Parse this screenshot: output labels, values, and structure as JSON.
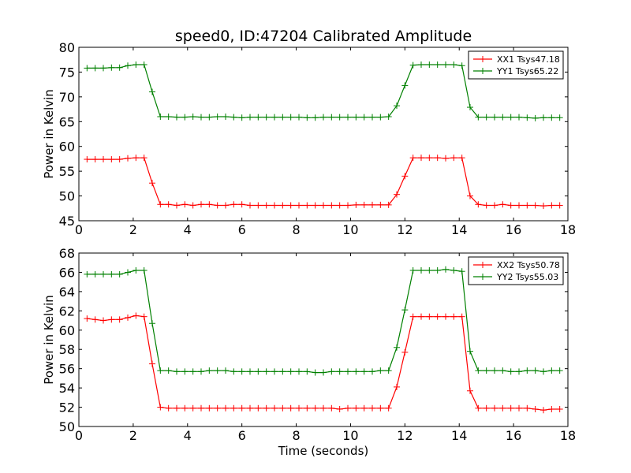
{
  "figure": {
    "title": "speed0, ID:47204 Calibrated Amplitude",
    "xlabel": "Time (seconds)"
  },
  "chart_data": [
    {
      "type": "line",
      "title": "speed0, ID:47204 Calibrated Amplitude",
      "xlabel": "",
      "ylabel": "Power in Kelvin",
      "xlim": [
        0,
        18
      ],
      "ylim": [
        45,
        80
      ],
      "xticks": [
        0,
        2,
        4,
        6,
        8,
        10,
        12,
        14,
        16,
        18
      ],
      "yticks": [
        45,
        50,
        55,
        60,
        65,
        70,
        75,
        80
      ],
      "legend": "top-right",
      "grid": false,
      "series": [
        {
          "name": "XX1 Tsys47.18",
          "color": "#ff0000",
          "x": [
            0.3,
            0.6,
            0.9,
            1.2,
            1.5,
            1.8,
            2.1,
            2.4,
            2.7,
            3.0,
            3.3,
            3.6,
            3.9,
            4.2,
            4.5,
            4.8,
            5.1,
            5.4,
            5.7,
            6.0,
            6.3,
            6.6,
            6.9,
            7.2,
            7.5,
            7.8,
            8.1,
            8.4,
            8.7,
            9.0,
            9.3,
            9.6,
            9.9,
            10.2,
            10.5,
            10.8,
            11.1,
            11.4,
            11.7,
            12.0,
            12.3,
            12.6,
            12.9,
            13.2,
            13.5,
            13.8,
            14.1,
            14.4,
            14.7,
            15.0,
            15.3,
            15.6,
            15.9,
            16.2,
            16.5,
            16.8,
            17.1,
            17.4,
            17.7
          ],
          "y": [
            57.4,
            57.4,
            57.4,
            57.4,
            57.4,
            57.6,
            57.7,
            57.7,
            52.6,
            48.3,
            48.3,
            48.1,
            48.3,
            48.1,
            48.3,
            48.3,
            48.1,
            48.1,
            48.3,
            48.3,
            48.1,
            48.1,
            48.1,
            48.1,
            48.1,
            48.1,
            48.1,
            48.1,
            48.1,
            48.1,
            48.1,
            48.1,
            48.1,
            48.2,
            48.2,
            48.2,
            48.2,
            48.2,
            50.3,
            54.0,
            57.7,
            57.7,
            57.7,
            57.7,
            57.6,
            57.7,
            57.7,
            50.0,
            48.3,
            48.1,
            48.1,
            48.3,
            48.1,
            48.1,
            48.1,
            48.1,
            48.0,
            48.1,
            48.1
          ]
        },
        {
          "name": "YY1 Tsys65.22",
          "color": "#008000",
          "x": [
            0.3,
            0.6,
            0.9,
            1.2,
            1.5,
            1.8,
            2.1,
            2.4,
            2.7,
            3.0,
            3.3,
            3.6,
            3.9,
            4.2,
            4.5,
            4.8,
            5.1,
            5.4,
            5.7,
            6.0,
            6.3,
            6.6,
            6.9,
            7.2,
            7.5,
            7.8,
            8.1,
            8.4,
            8.7,
            9.0,
            9.3,
            9.6,
            9.9,
            10.2,
            10.5,
            10.8,
            11.1,
            11.4,
            11.7,
            12.0,
            12.3,
            12.6,
            12.9,
            13.2,
            13.5,
            13.8,
            14.1,
            14.4,
            14.7,
            15.0,
            15.3,
            15.6,
            15.9,
            16.2,
            16.5,
            16.8,
            17.1,
            17.4,
            17.7
          ],
          "y": [
            75.8,
            75.8,
            75.8,
            75.9,
            75.9,
            76.3,
            76.5,
            76.5,
            71.0,
            66.0,
            66.0,
            65.9,
            65.9,
            66.0,
            65.9,
            65.9,
            66.0,
            66.0,
            65.9,
            65.8,
            65.9,
            65.9,
            65.9,
            65.9,
            65.9,
            65.9,
            65.9,
            65.8,
            65.8,
            65.9,
            65.9,
            65.9,
            65.9,
            65.9,
            65.9,
            65.9,
            65.9,
            66.0,
            68.2,
            72.3,
            76.4,
            76.5,
            76.5,
            76.5,
            76.5,
            76.5,
            76.3,
            67.9,
            65.9,
            65.9,
            65.9,
            65.9,
            65.9,
            65.9,
            65.8,
            65.7,
            65.8,
            65.8,
            65.8
          ]
        }
      ]
    },
    {
      "type": "line",
      "title": "",
      "xlabel": "Time (seconds)",
      "ylabel": "Power in Kelvin",
      "xlim": [
        0,
        18
      ],
      "ylim": [
        50,
        68
      ],
      "xticks": [
        0,
        2,
        4,
        6,
        8,
        10,
        12,
        14,
        16,
        18
      ],
      "yticks": [
        50,
        52,
        54,
        56,
        58,
        60,
        62,
        64,
        66,
        68
      ],
      "legend": "top-right",
      "grid": false,
      "series": [
        {
          "name": "XX2 Tsys50.78",
          "color": "#ff0000",
          "x": [
            0.3,
            0.6,
            0.9,
            1.2,
            1.5,
            1.8,
            2.1,
            2.4,
            2.7,
            3.0,
            3.3,
            3.6,
            3.9,
            4.2,
            4.5,
            4.8,
            5.1,
            5.4,
            5.7,
            6.0,
            6.3,
            6.6,
            6.9,
            7.2,
            7.5,
            7.8,
            8.1,
            8.4,
            8.7,
            9.0,
            9.3,
            9.6,
            9.9,
            10.2,
            10.5,
            10.8,
            11.1,
            11.4,
            11.7,
            12.0,
            12.3,
            12.6,
            12.9,
            13.2,
            13.5,
            13.8,
            14.1,
            14.4,
            14.7,
            15.0,
            15.3,
            15.6,
            15.9,
            16.2,
            16.5,
            16.8,
            17.1,
            17.4,
            17.7
          ],
          "y": [
            61.2,
            61.1,
            61.0,
            61.1,
            61.1,
            61.3,
            61.5,
            61.4,
            56.5,
            52.0,
            51.9,
            51.9,
            51.9,
            51.9,
            51.9,
            51.9,
            51.9,
            51.9,
            51.9,
            51.9,
            51.9,
            51.9,
            51.9,
            51.9,
            51.9,
            51.9,
            51.9,
            51.9,
            51.9,
            51.9,
            51.9,
            51.8,
            51.9,
            51.9,
            51.9,
            51.9,
            51.9,
            51.9,
            54.1,
            57.7,
            61.4,
            61.4,
            61.4,
            61.4,
            61.4,
            61.4,
            61.4,
            53.7,
            51.9,
            51.9,
            51.9,
            51.9,
            51.9,
            51.9,
            51.9,
            51.8,
            51.7,
            51.8,
            51.8
          ]
        },
        {
          "name": "YY2 Tsys55.03",
          "color": "#008000",
          "x": [
            0.3,
            0.6,
            0.9,
            1.2,
            1.5,
            1.8,
            2.1,
            2.4,
            2.7,
            3.0,
            3.3,
            3.6,
            3.9,
            4.2,
            4.5,
            4.8,
            5.1,
            5.4,
            5.7,
            6.0,
            6.3,
            6.6,
            6.9,
            7.2,
            7.5,
            7.8,
            8.1,
            8.4,
            8.7,
            9.0,
            9.3,
            9.6,
            9.9,
            10.2,
            10.5,
            10.8,
            11.1,
            11.4,
            11.7,
            12.0,
            12.3,
            12.6,
            12.9,
            13.2,
            13.5,
            13.8,
            14.1,
            14.4,
            14.7,
            15.0,
            15.3,
            15.6,
            15.9,
            16.2,
            16.5,
            16.8,
            17.1,
            17.4,
            17.7
          ],
          "y": [
            65.8,
            65.8,
            65.8,
            65.8,
            65.8,
            66.0,
            66.2,
            66.2,
            60.7,
            55.8,
            55.8,
            55.7,
            55.7,
            55.7,
            55.7,
            55.8,
            55.8,
            55.8,
            55.7,
            55.7,
            55.7,
            55.7,
            55.7,
            55.7,
            55.7,
            55.7,
            55.7,
            55.7,
            55.6,
            55.6,
            55.7,
            55.7,
            55.7,
            55.7,
            55.7,
            55.7,
            55.8,
            55.8,
            58.2,
            62.1,
            66.2,
            66.2,
            66.2,
            66.2,
            66.3,
            66.2,
            66.1,
            57.8,
            55.8,
            55.8,
            55.8,
            55.8,
            55.7,
            55.7,
            55.8,
            55.8,
            55.7,
            55.8,
            55.8
          ]
        }
      ]
    }
  ]
}
